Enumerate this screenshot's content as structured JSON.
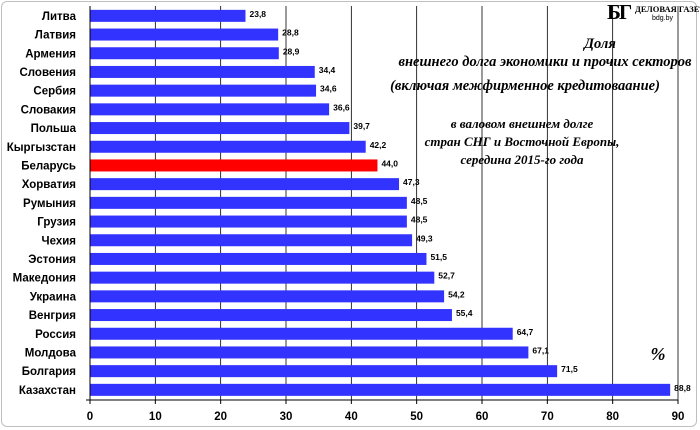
{
  "logo": {
    "mark": "БГ",
    "name": "ДЕЛОВАЯ ГАЗЕТА",
    "url": "bdg.by"
  },
  "chart_data": {
    "type": "bar",
    "orientation": "horizontal",
    "title": "Доля внешнего долга экономики и прочих секторов (включая межфирменное кредитоваание)",
    "title_lines": [
      "Доля",
      "внешнего долга экономики и прочих секторов",
      "(включая межфирменное кредитоваание)"
    ],
    "subtitle_lines": [
      "в валовом внешнем  долге",
      "стран СНГ и Восточной Европы,",
      "середина 2015-го года"
    ],
    "unit_annotation": "%",
    "categories": [
      "Литва",
      "Латвия",
      "Армения",
      "Словения",
      "Сербия",
      "Словакия",
      "Польша",
      "Кыргызстан",
      "Беларусь",
      "Хорватия",
      "Румыния",
      "Грузия",
      "Чехия",
      "Эстония",
      "Македония",
      "Украина",
      "Венгрия",
      "Россия",
      "Молдова",
      "Болгария",
      "Казахстан"
    ],
    "values": [
      23.8,
      28.8,
      28.9,
      34.4,
      34.6,
      36.6,
      39.7,
      42.2,
      44.0,
      47.3,
      48.5,
      48.5,
      49.3,
      51.5,
      52.7,
      54.2,
      55.4,
      64.7,
      67.1,
      71.5,
      88.8
    ],
    "value_labels": [
      "23,8",
      "28,8",
      "28,9",
      "34,4",
      "34,6",
      "36,6",
      "39,7",
      "42,2",
      "44,0",
      "47,3",
      "48,5",
      "48,5",
      "49,3",
      "51,5",
      "52,7",
      "54,2",
      "55,4",
      "64,7",
      "67,1",
      "71,5",
      "88,8"
    ],
    "highlight": "Беларусь",
    "bar_color": "#3333ff",
    "highlight_color": "#ff0000",
    "xlim": [
      0,
      90
    ],
    "xticks": [
      0,
      10,
      20,
      30,
      40,
      50,
      60,
      70,
      80,
      90
    ],
    "grid": "vertical",
    "legend": "none"
  }
}
